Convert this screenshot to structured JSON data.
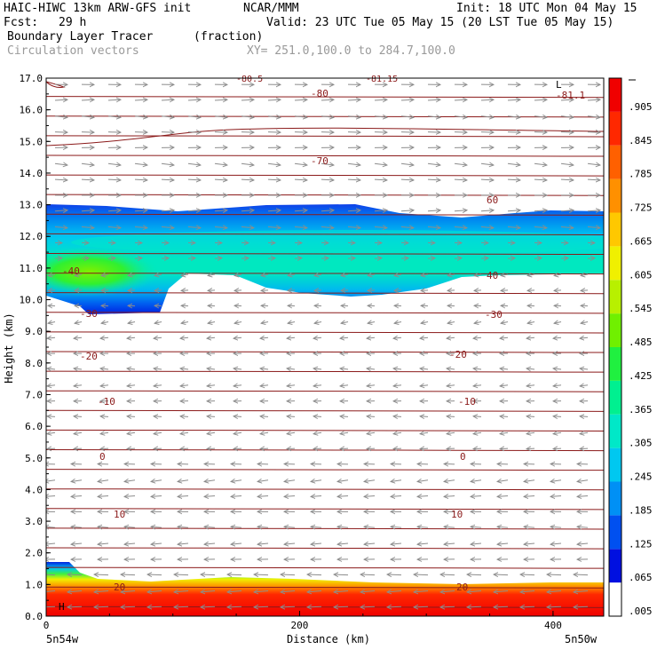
{
  "header": {
    "model": "HAIC-HIWC 13km ARW-GFS init",
    "org": "NCAR/MMM",
    "init": "Init: 18 UTC Mon 04 May 15",
    "fcst_label": "Fcst:",
    "fcst_value": "29 h",
    "valid": "Valid: 23 UTC Tue 05 May 15 (20 LST Tue 05 May 15)",
    "field": "Boundary Layer Tracer",
    "units": "(fraction)",
    "vectors": "Circulation vectors",
    "xy": "XY= 251.0,100.0 to 284.7,100.0"
  },
  "colors": {
    "contour": "#8b1a1a",
    "vector": "#8c8c8c",
    "colorbar": [
      "#ffffff",
      "#0010e0",
      "#0050f0",
      "#0090f5",
      "#00c8f0",
      "#00e8c8",
      "#00f090",
      "#20f040",
      "#70f000",
      "#b8f000",
      "#f0f000",
      "#ffc800",
      "#ff9000",
      "#ff6000",
      "#ff2800",
      "#f00000"
    ]
  },
  "chart_data": {
    "type": "heatmap",
    "xlabel": "Distance (km)",
    "ylabel": "Height (km)",
    "xlim": [
      0,
      440
    ],
    "ylim": [
      0,
      17
    ],
    "x_ticks": [
      "0",
      "200",
      "400"
    ],
    "y_ticks": [
      "0.0",
      "1.0",
      "2.0",
      "3.0",
      "4.0",
      "5.0",
      "6.0",
      "7.0",
      "8.0",
      "9.0",
      "10.0",
      "11.0",
      "12.0",
      "13.0",
      "14.0",
      "15.0",
      "16.0",
      "17.0"
    ],
    "x_endpoints": [
      "5n54w",
      "5n50w"
    ],
    "colorbar_labels": [
      ".005",
      ".065",
      ".125",
      ".185",
      ".245",
      ".305",
      ".365",
      ".425",
      ".485",
      ".545",
      ".605",
      ".665",
      ".725",
      ".785",
      ".845",
      ".905"
    ],
    "temperature_contour_labels": [
      "-81.1",
      "-80",
      "-70",
      "60",
      "-40",
      "40",
      "-30",
      "-30",
      "-20",
      "-20",
      "-10",
      "-10",
      "0",
      "0",
      "10",
      "10",
      "20",
      "20"
    ],
    "markers": [
      "L",
      "H"
    ],
    "top_fragments": [
      "-80.5",
      "-81.15"
    ],
    "temperature_contour_heights_km": [
      16.3,
      14.5,
      13.1,
      10.9,
      9.4,
      8.2,
      6.8,
      5.1,
      3.2,
      1.0
    ]
  }
}
